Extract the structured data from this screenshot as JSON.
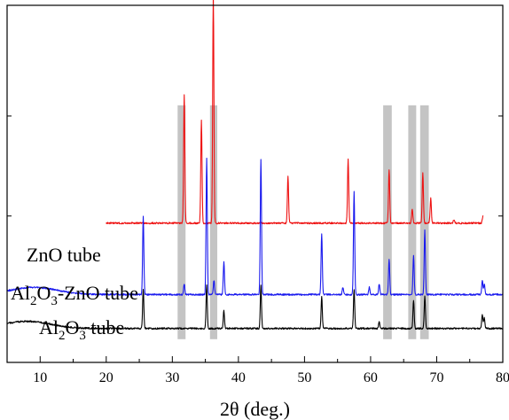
{
  "chart_data": {
    "type": "line",
    "xlabel": "2θ (deg.)",
    "xlim": [
      5,
      80
    ],
    "xticks": [
      10,
      20,
      30,
      40,
      50,
      60,
      70,
      80
    ],
    "yticks_labeled": false,
    "grid": false,
    "highlight_bands": [
      {
        "from": 30.8,
        "to": 32.0
      },
      {
        "from": 35.7,
        "to": 36.8
      },
      {
        "from": 61.9,
        "to": 63.2
      },
      {
        "from": 65.7,
        "to": 66.9
      },
      {
        "from": 67.5,
        "to": 68.8
      }
    ],
    "series": [
      {
        "name_parts": [
          "ZnO tube"
        ],
        "color": "#ee1111",
        "baseline": 0.61,
        "x_start": 20,
        "x_end": 77,
        "peaks": [
          {
            "x": 31.8,
            "h": 0.36
          },
          {
            "x": 34.4,
            "h": 0.29
          },
          {
            "x": 36.2,
            "h": 0.64
          },
          {
            "x": 47.5,
            "h": 0.13
          },
          {
            "x": 56.6,
            "h": 0.18
          },
          {
            "x": 62.8,
            "h": 0.15
          },
          {
            "x": 66.3,
            "h": 0.04
          },
          {
            "x": 67.9,
            "h": 0.14
          },
          {
            "x": 69.1,
            "h": 0.07
          },
          {
            "x": 72.6,
            "h": 0.01
          },
          {
            "x": 77.0,
            "h": 0.02
          }
        ]
      },
      {
        "name_parts": [
          "Al",
          "2",
          "O",
          "3",
          "-ZnO tube"
        ],
        "color": "#1a1aee",
        "baseline": 0.81,
        "x_start": 5,
        "x_end": 80,
        "amorphous_hump": {
          "center": 9,
          "width": 5,
          "height": 0.02
        },
        "peaks": [
          {
            "x": 25.6,
            "h": 0.22
          },
          {
            "x": 31.8,
            "h": 0.03
          },
          {
            "x": 35.2,
            "h": 0.38
          },
          {
            "x": 36.3,
            "h": 0.04
          },
          {
            "x": 37.8,
            "h": 0.09
          },
          {
            "x": 43.4,
            "h": 0.38
          },
          {
            "x": 52.6,
            "h": 0.17
          },
          {
            "x": 55.8,
            "h": 0.02
          },
          {
            "x": 57.5,
            "h": 0.29
          },
          {
            "x": 59.8,
            "h": 0.02
          },
          {
            "x": 61.3,
            "h": 0.03
          },
          {
            "x": 62.8,
            "h": 0.1
          },
          {
            "x": 66.5,
            "h": 0.11
          },
          {
            "x": 68.2,
            "h": 0.18
          },
          {
            "x": 76.9,
            "h": 0.04
          },
          {
            "x": 77.2,
            "h": 0.03
          }
        ]
      },
      {
        "name_parts": [
          "Al",
          "2",
          "O",
          "3",
          " tube"
        ],
        "color": "#000000",
        "baseline": 0.905,
        "x_start": 5,
        "x_end": 80,
        "amorphous_hump": {
          "center": 8,
          "width": 5,
          "height": 0.02
        },
        "peaks": [
          {
            "x": 25.6,
            "h": 0.11
          },
          {
            "x": 35.2,
            "h": 0.12
          },
          {
            "x": 37.8,
            "h": 0.05
          },
          {
            "x": 43.4,
            "h": 0.12
          },
          {
            "x": 52.6,
            "h": 0.09
          },
          {
            "x": 57.5,
            "h": 0.11
          },
          {
            "x": 61.3,
            "h": 0.02
          },
          {
            "x": 66.5,
            "h": 0.08
          },
          {
            "x": 68.2,
            "h": 0.09
          },
          {
            "x": 76.9,
            "h": 0.04
          },
          {
            "x": 77.2,
            "h": 0.03
          }
        ]
      }
    ]
  }
}
